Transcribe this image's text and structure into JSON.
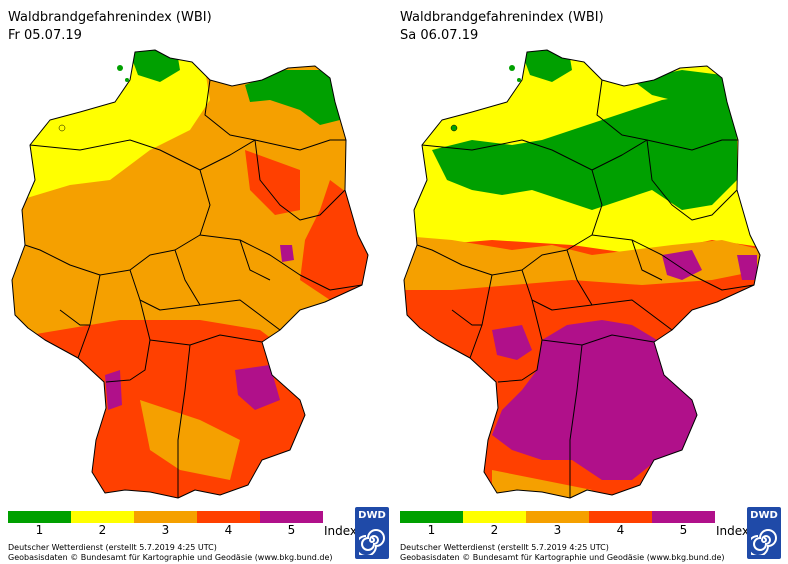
{
  "panels": [
    {
      "title": "Waldbrandgefahrenindex (WBI)",
      "date": "Fr 05.07.19",
      "dominant_index": 3
    },
    {
      "title": "Waldbrandgefahrenindex (WBI)",
      "date": "Sa 06.07.19",
      "dominant_index": 4
    }
  ],
  "legend": {
    "labels": [
      "1",
      "2",
      "3",
      "4",
      "5"
    ],
    "colors": [
      "#00a000",
      "#ffff00",
      "#f5a000",
      "#ff4000",
      "#b0108a"
    ],
    "unit_label": "Index"
  },
  "footer": {
    "line1": "Deutscher Wetterdienst (erstellt 5.7.2019 4:25 UTC)",
    "line2": "Geobasisdaten © Bundesamt für Kartographie und Geodäsie (www.bkg.bund.de)"
  },
  "logo_text": "DWD"
}
